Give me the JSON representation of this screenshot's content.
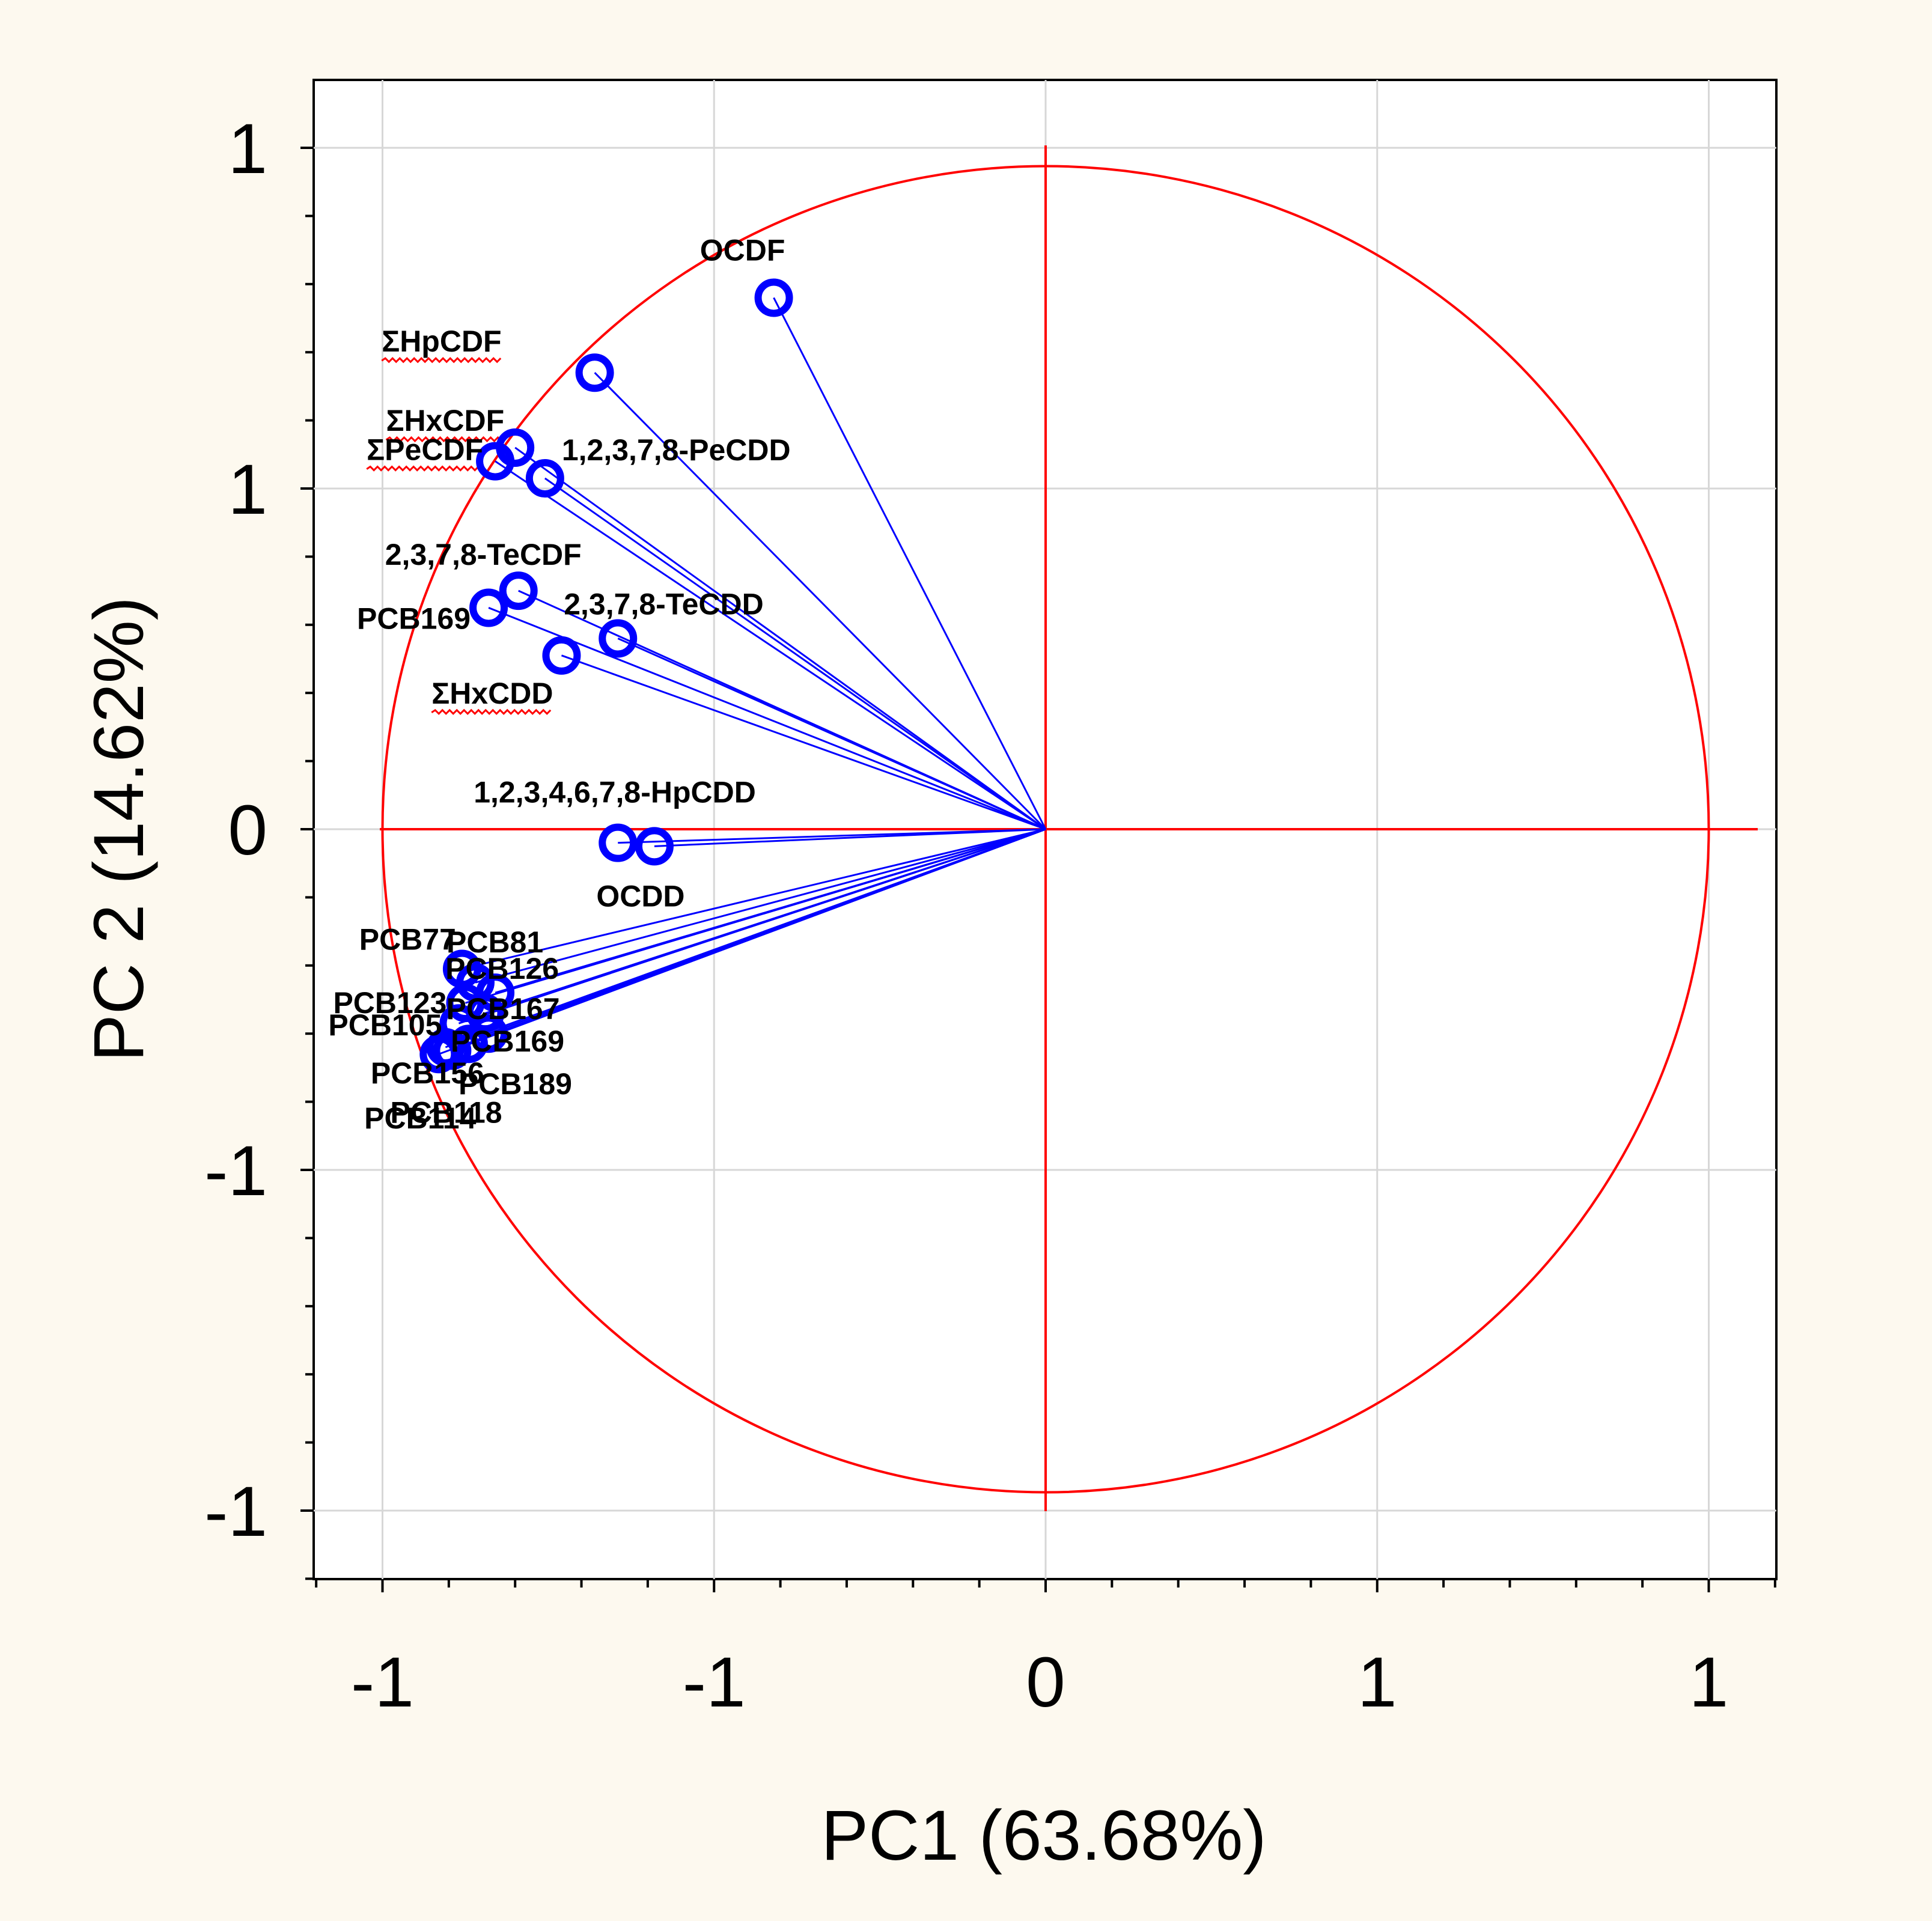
{
  "colors": {
    "background": "#fdf9ef",
    "plot_background": "#ffffff",
    "circle": "#ff0000",
    "vectors": "#0000ff"
  },
  "chart_data": {
    "type": "scatter",
    "subtype": "pca-loading-plot",
    "title": "",
    "xlabel": "PC1 (63.68%)",
    "ylabel": "PC 2 (14.62%)",
    "xlim": [
      -1.1,
      1.1
    ],
    "ylim": [
      -1.1,
      1.1
    ],
    "grid": true,
    "x_ticks": [
      {
        "value": -1.0,
        "label": "-1"
      },
      {
        "value": -0.5,
        "label": "-1"
      },
      {
        "value": 0.0,
        "label": "0"
      },
      {
        "value": 0.5,
        "label": "1"
      },
      {
        "value": 1.0,
        "label": "1"
      }
    ],
    "y_ticks": [
      {
        "value": 1.0,
        "label": "1"
      },
      {
        "value": 0.5,
        "label": "1"
      },
      {
        "value": 0.0,
        "label": "0"
      },
      {
        "value": -0.5,
        "label": "-1"
      },
      {
        "value": -1.0,
        "label": "-1"
      }
    ],
    "unit_circle": true,
    "points": [
      {
        "name": "OCDF",
        "x": -0.41,
        "y": 0.78
      },
      {
        "name": "ΣHpCDF",
        "x": -0.68,
        "y": 0.67
      },
      {
        "name": "ΣHxCDF",
        "x": -0.8,
        "y": 0.56
      },
      {
        "name": "ΣPeCDF",
        "x": -0.83,
        "y": 0.54
      },
      {
        "name": "1,2,3,7,8-PeCDD",
        "x": -0.755,
        "y": 0.515
      },
      {
        "name": "2,3,7,8-TeCDF",
        "x": -0.795,
        "y": 0.35
      },
      {
        "name": "PCB169",
        "x": -0.84,
        "y": 0.325
      },
      {
        "name": "2,3,7,8-TeCDD",
        "x": -0.645,
        "y": 0.28
      },
      {
        "name": "ΣHxCDD",
        "x": -0.73,
        "y": 0.255
      },
      {
        "name": "1,2,3,4,6,7,8-HpCDD",
        "x": -0.645,
        "y": -0.02
      },
      {
        "name": "OCDD",
        "x": -0.59,
        "y": -0.025
      },
      {
        "name": "PCB77",
        "x": -0.88,
        "y": -0.205
      },
      {
        "name": "PCB81",
        "x": -0.86,
        "y": -0.225
      },
      {
        "name": "PCB126",
        "x": -0.83,
        "y": -0.24
      },
      {
        "name": "PCB123",
        "x": -0.875,
        "y": -0.255
      },
      {
        "name": "PCB167",
        "x": -0.845,
        "y": -0.27
      },
      {
        "name": "PCB105",
        "x": -0.885,
        "y": -0.285
      },
      {
        "name": "PCB169",
        "x": -0.84,
        "y": -0.3
      },
      {
        "name": "PCB156",
        "x": -0.905,
        "y": -0.32
      },
      {
        "name": "PCB189",
        "x": -0.87,
        "y": -0.315
      },
      {
        "name": "PCB114",
        "x": -0.915,
        "y": -0.33
      },
      {
        "name": "PCB118",
        "x": -0.895,
        "y": -0.325
      }
    ]
  }
}
